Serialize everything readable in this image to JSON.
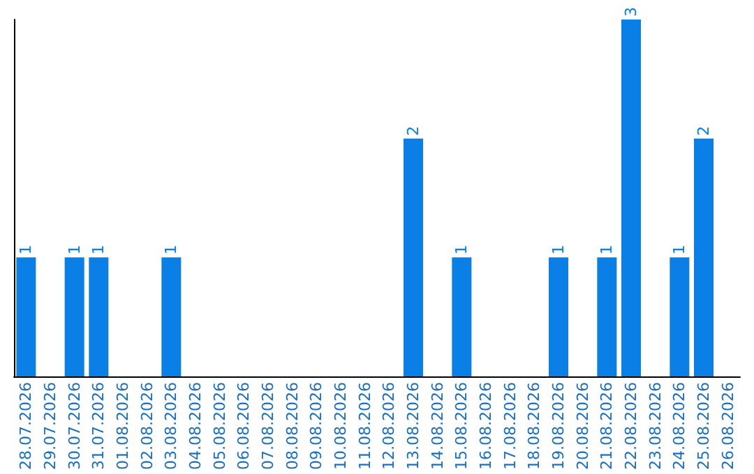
{
  "chart_data": {
    "type": "bar",
    "categories": [
      "28.07.2026",
      "29.07.2026",
      "30.07.2026",
      "31.07.2026",
      "01.08.2026",
      "02.08.2026",
      "03.08.2026",
      "04.08.2026",
      "05.08.2026",
      "06.08.2026",
      "07.08.2026",
      "08.08.2026",
      "09.08.2026",
      "10.08.2026",
      "11.08.2026",
      "12.08.2026",
      "13.08.2026",
      "14.08.2026",
      "15.08.2026",
      "16.08.2026",
      "17.08.2026",
      "18.08.2026",
      "19.08.2026",
      "20.08.2026",
      "21.08.2026",
      "22.08.2026",
      "23.08.2026",
      "24.08.2026",
      "25.08.2026",
      "26.08.2026"
    ],
    "values": [
      1,
      0,
      1,
      1,
      0,
      0,
      1,
      0,
      0,
      0,
      0,
      0,
      0,
      0,
      0,
      0,
      2,
      0,
      1,
      0,
      0,
      0,
      1,
      0,
      1,
      3,
      0,
      1,
      2,
      0
    ],
    "value_labels": [
      "1",
      null,
      "1",
      "1",
      null,
      null,
      "1",
      null,
      null,
      null,
      null,
      null,
      null,
      null,
      null,
      null,
      "2",
      null,
      "1",
      null,
      null,
      null,
      "1",
      null,
      "1",
      "3",
      null,
      "1",
      "2",
      null
    ],
    "color": "#0a7fe6",
    "tick_labels": "x",
    "grid": false
  }
}
